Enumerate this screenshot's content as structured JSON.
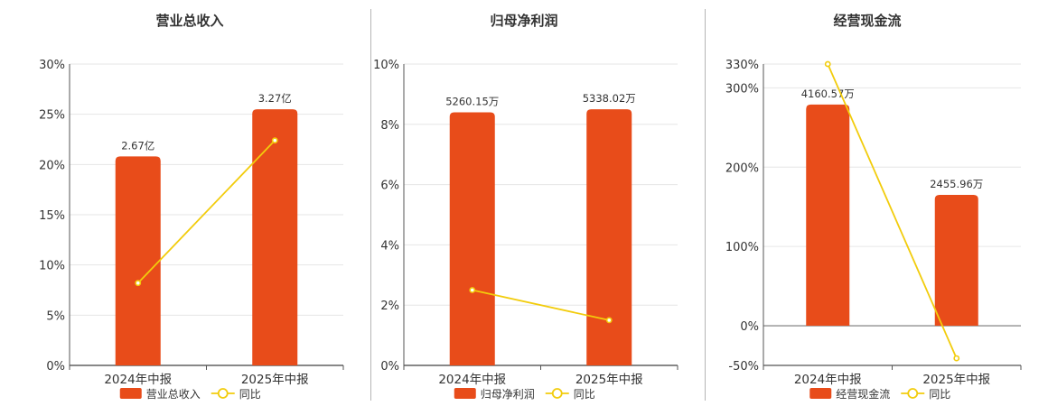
{
  "colors": {
    "bar": "#E84C1A",
    "line": "#F2CC0C",
    "grid": "#e6e6e6",
    "axis": "#555555",
    "text": "#333333"
  },
  "chart_data": [
    {
      "type": "bar",
      "title": "营业总收入",
      "categories": [
        "2024年中报",
        "2025年中报"
      ],
      "bar_labels": [
        "2.67亿",
        "3.27亿"
      ],
      "bar_heights_pct": [
        20.8,
        25.5
      ],
      "line": {
        "name": "同比",
        "values": [
          8.2,
          22.4
        ]
      },
      "ylim": [
        0,
        30
      ],
      "yticks": [
        0,
        5,
        10,
        15,
        20,
        25,
        30
      ],
      "ytick_labels": [
        "0%",
        "5%",
        "10%",
        "15%",
        "20%",
        "25%",
        "30%"
      ],
      "legend": {
        "bar": "营业总收入",
        "line": "同比"
      }
    },
    {
      "type": "bar",
      "title": "归母净利润",
      "categories": [
        "2024年中报",
        "2025年中报"
      ],
      "bar_labels": [
        "5260.15万",
        "5338.02万"
      ],
      "bar_heights_pct": [
        8.4,
        8.5
      ],
      "line": {
        "name": "同比",
        "values": [
          2.5,
          1.5
        ]
      },
      "ylim": [
        0,
        10
      ],
      "yticks": [
        0,
        2,
        4,
        6,
        8,
        10
      ],
      "ytick_labels": [
        "0%",
        "2%",
        "4%",
        "6%",
        "8%",
        "10%"
      ],
      "legend": {
        "bar": "归母净利润",
        "line": "同比"
      }
    },
    {
      "type": "bar",
      "title": "经营现金流",
      "categories": [
        "2024年中报",
        "2025年中报"
      ],
      "bar_labels": [
        "4160.57万",
        "2455.96万"
      ],
      "bar_heights_pct": [
        279,
        165
      ],
      "line": {
        "name": "同比",
        "values": [
          330,
          -41
        ]
      },
      "ylim": [
        -50,
        330
      ],
      "yticks": [
        -50,
        0,
        100,
        200,
        300,
        330
      ],
      "ytick_labels": [
        "-50%",
        "0%",
        "100%",
        "200%",
        "300%",
        "330%"
      ],
      "legend": {
        "bar": "经营现金流",
        "line": "同比"
      }
    }
  ]
}
